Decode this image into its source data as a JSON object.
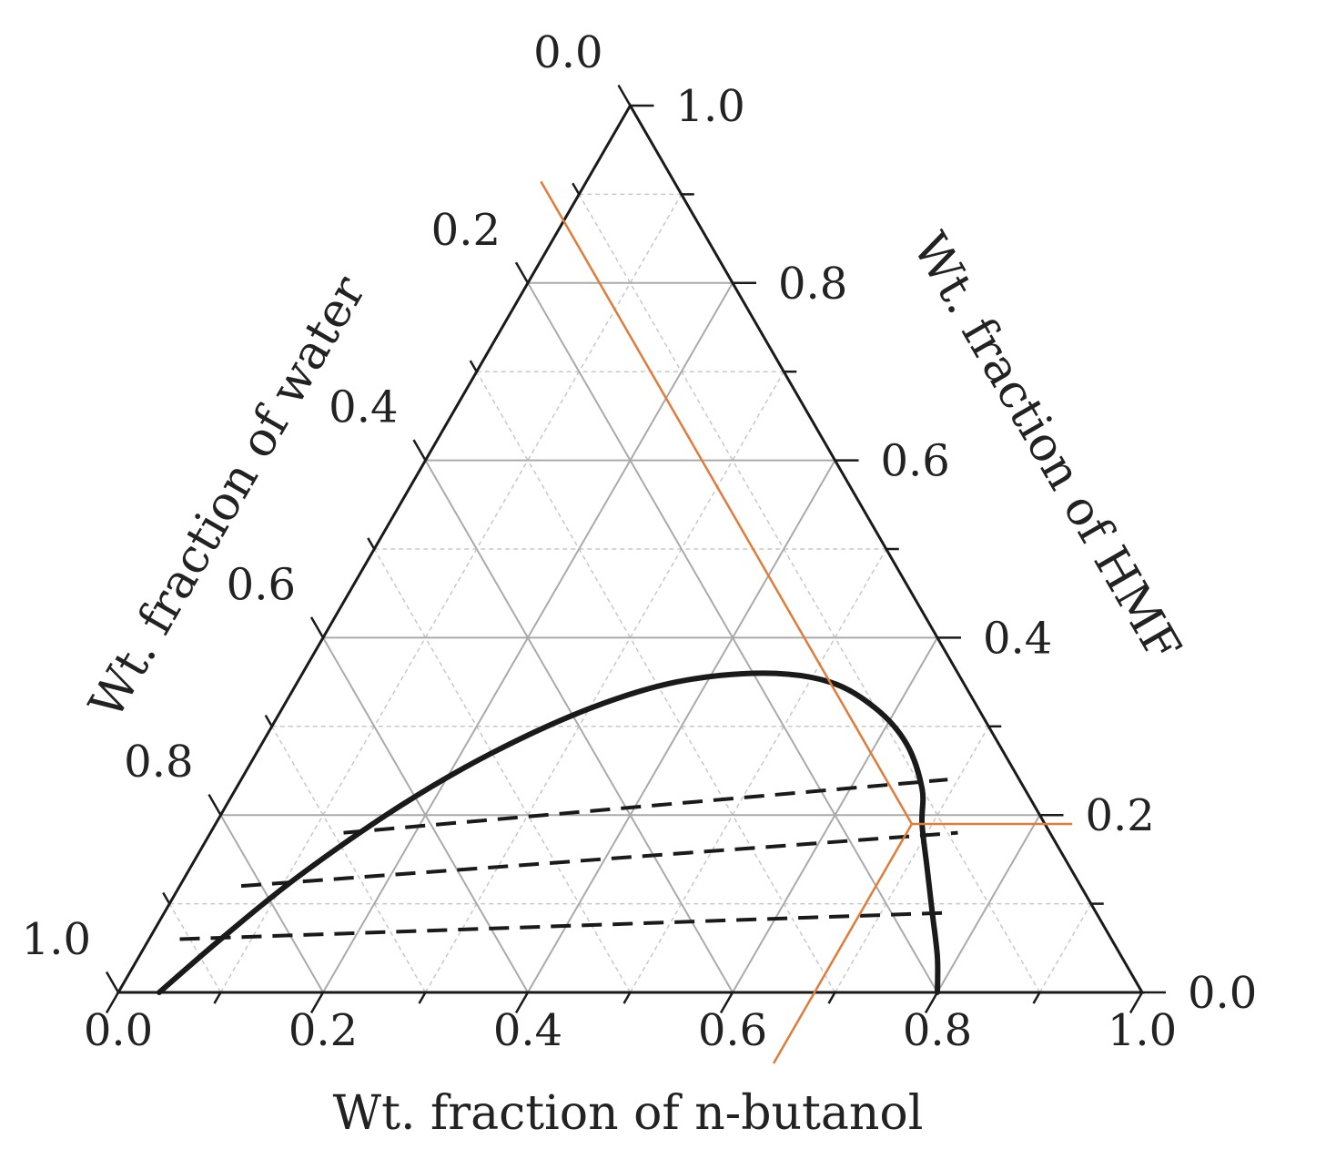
{
  "chart_data": {
    "type": "ternary",
    "axes": {
      "bottom": {
        "label": "Wt. fraction of n-butanol",
        "ticks": [
          "0.0",
          "0.2",
          "0.4",
          "0.6",
          "0.8",
          "1.0"
        ]
      },
      "left": {
        "label": "Wt. fraction of water",
        "ticks": [
          "0.0",
          "0.2",
          "0.4",
          "0.6",
          "0.8",
          "1.0"
        ]
      },
      "right": {
        "label": "Wt. fraction of HMF",
        "ticks": [
          "0.0",
          "0.2",
          "0.4",
          "0.6",
          "0.8",
          "1.0"
        ]
      }
    },
    "grid": {
      "major_step": 0.2,
      "minor_step": 0.1,
      "major_color": "#aaaaaa",
      "minor_color": "#c8c8c8"
    },
    "binodal_curve": {
      "color": "#1a1a1a",
      "points": [
        {
          "butanol": 0.04,
          "hmf": 0.0
        },
        {
          "butanol": 0.07,
          "hmf": 0.06
        },
        {
          "butanol": 0.11,
          "hmf": 0.13
        },
        {
          "butanol": 0.17,
          "hmf": 0.21
        },
        {
          "butanol": 0.23,
          "hmf": 0.27
        },
        {
          "butanol": 0.3,
          "hmf": 0.32
        },
        {
          "butanol": 0.37,
          "hmf": 0.35
        },
        {
          "butanol": 0.45,
          "hmf": 0.36
        },
        {
          "butanol": 0.52,
          "hmf": 0.35
        },
        {
          "butanol": 0.58,
          "hmf": 0.32
        },
        {
          "butanol": 0.63,
          "hmf": 0.28
        },
        {
          "butanol": 0.67,
          "hmf": 0.23
        },
        {
          "butanol": 0.69,
          "hmf": 0.19
        },
        {
          "butanol": 0.72,
          "hmf": 0.14
        },
        {
          "butanol": 0.75,
          "hmf": 0.09
        },
        {
          "butanol": 0.78,
          "hmf": 0.04
        },
        {
          "butanol": 0.8,
          "hmf": 0.0
        }
      ]
    },
    "tie_lines": [
      {
        "from": {
          "butanol": 0.03,
          "hmf": 0.06
        },
        "to": {
          "butanol": 0.77,
          "hmf": 0.09
        }
      },
      {
        "from": {
          "butanol": 0.06,
          "hmf": 0.12
        },
        "to": {
          "butanol": 0.73,
          "hmf": 0.18
        }
      },
      {
        "from": {
          "butanol": 0.13,
          "hmf": 0.18
        },
        "to": {
          "butanol": 0.69,
          "hmf": 0.24
        }
      }
    ],
    "example_point": {
      "color": "#e07b39",
      "composition": {
        "butanol": 0.68,
        "hmf": 0.19,
        "water": 0.13
      }
    }
  }
}
